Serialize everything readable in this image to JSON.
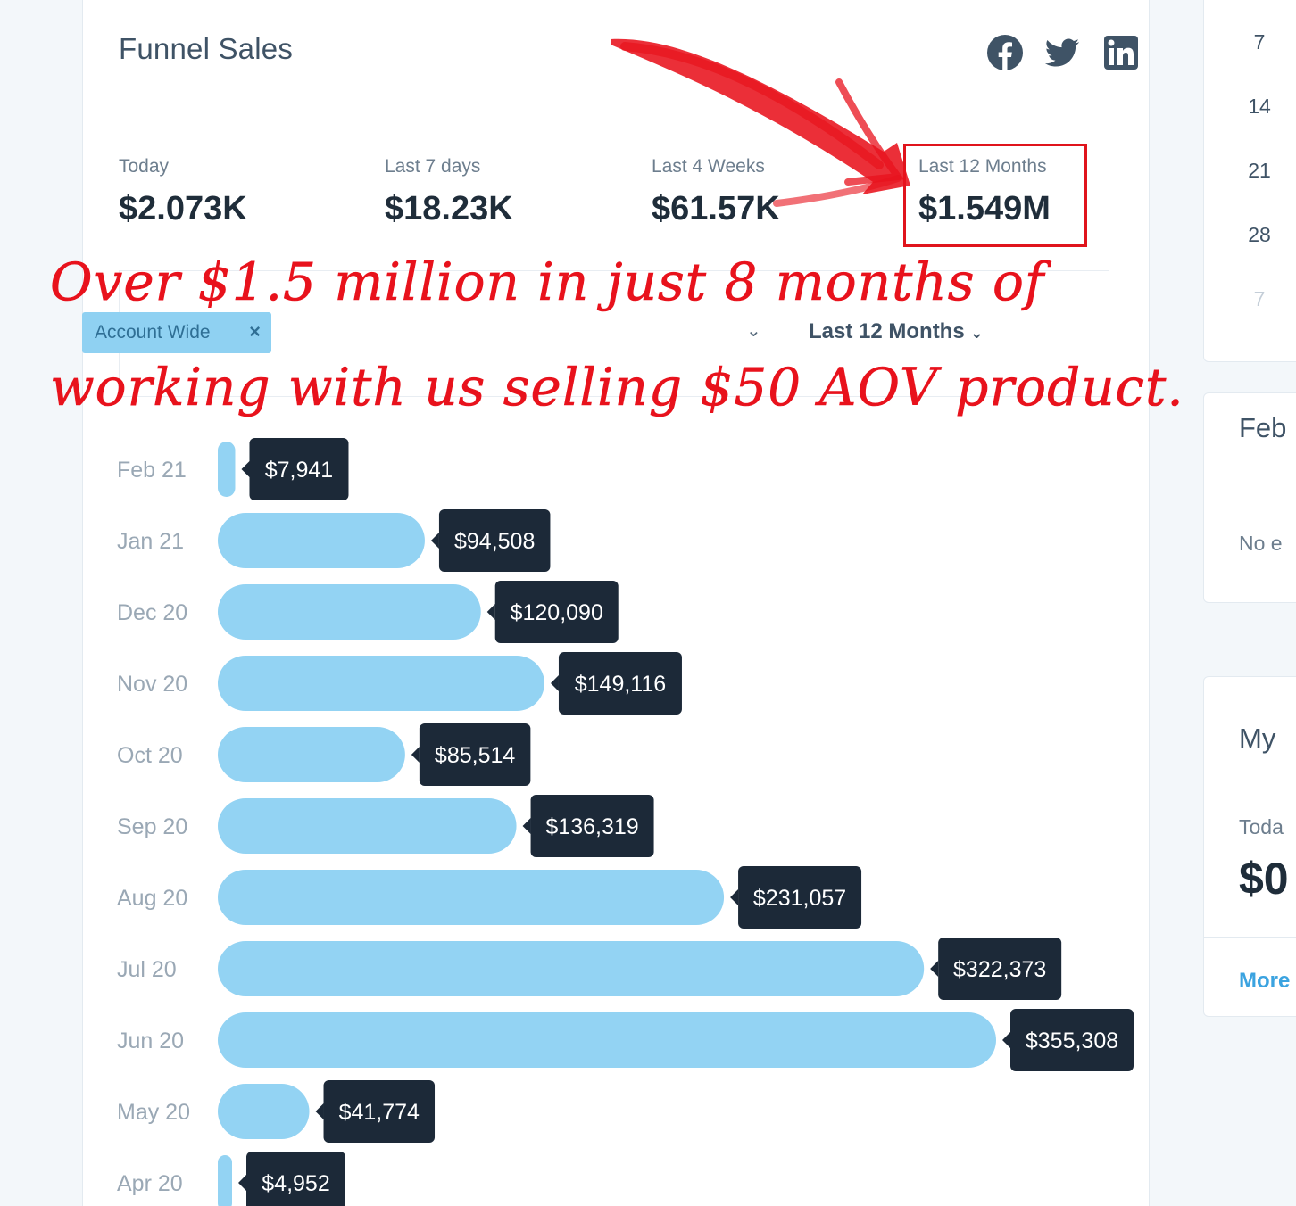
{
  "card": {
    "title": "Funnel Sales"
  },
  "social_icons": [
    "facebook-icon",
    "twitter-icon",
    "linkedin-icon"
  ],
  "stats": [
    {
      "label": "Today",
      "value": "$2.073K"
    },
    {
      "label": "Last 7 days",
      "value": "$18.23K"
    },
    {
      "label": "Last 4 Weeks",
      "value": "$61.57K"
    },
    {
      "label": "Last 12 Months",
      "value": "$1.549M"
    }
  ],
  "filters": {
    "chip_label": "Account Wide",
    "chip_close": "×",
    "dropdown_chevron": "⌄",
    "period_label": "Last 12 Months",
    "period_chevron": "⌄"
  },
  "annotation": {
    "line1": "Over $1.5 million  in just 8 months of",
    "line2": "working with us selling $50 AOV product.",
    "color": "#e8121c"
  },
  "colors": {
    "bar": "#93d3f3",
    "label_bg": "#1c2938",
    "highlight": "#e0141c"
  },
  "chart_data": {
    "type": "bar",
    "orientation": "horizontal",
    "categories": [
      "Feb 21",
      "Jan 21",
      "Dec 20",
      "Nov 20",
      "Oct 20",
      "Sep 20",
      "Aug 20",
      "Jul 20",
      "Jun 20",
      "May 20",
      "Apr 20"
    ],
    "values": [
      7941,
      94508,
      120090,
      149116,
      85514,
      136319,
      231057,
      322373,
      355308,
      41774,
      4952
    ],
    "value_labels": [
      "$7,941",
      "$94,508",
      "$120,090",
      "$149,116",
      "$85,514",
      "$136,319",
      "$231,057",
      "$322,373",
      "$355,308",
      "$41,774",
      "$4,952"
    ],
    "title": "",
    "xlabel": "",
    "ylabel": "",
    "xlim": [
      0,
      355308
    ],
    "grid": false,
    "legend": "none"
  },
  "side": {
    "calendar_days": [
      "7",
      "14",
      "21",
      "28",
      "7"
    ],
    "card2_title": "Feb",
    "card2_text": "No e",
    "card3_title": "My",
    "card3_label": "Toda",
    "card3_value": "$0",
    "card3_link": "More"
  }
}
